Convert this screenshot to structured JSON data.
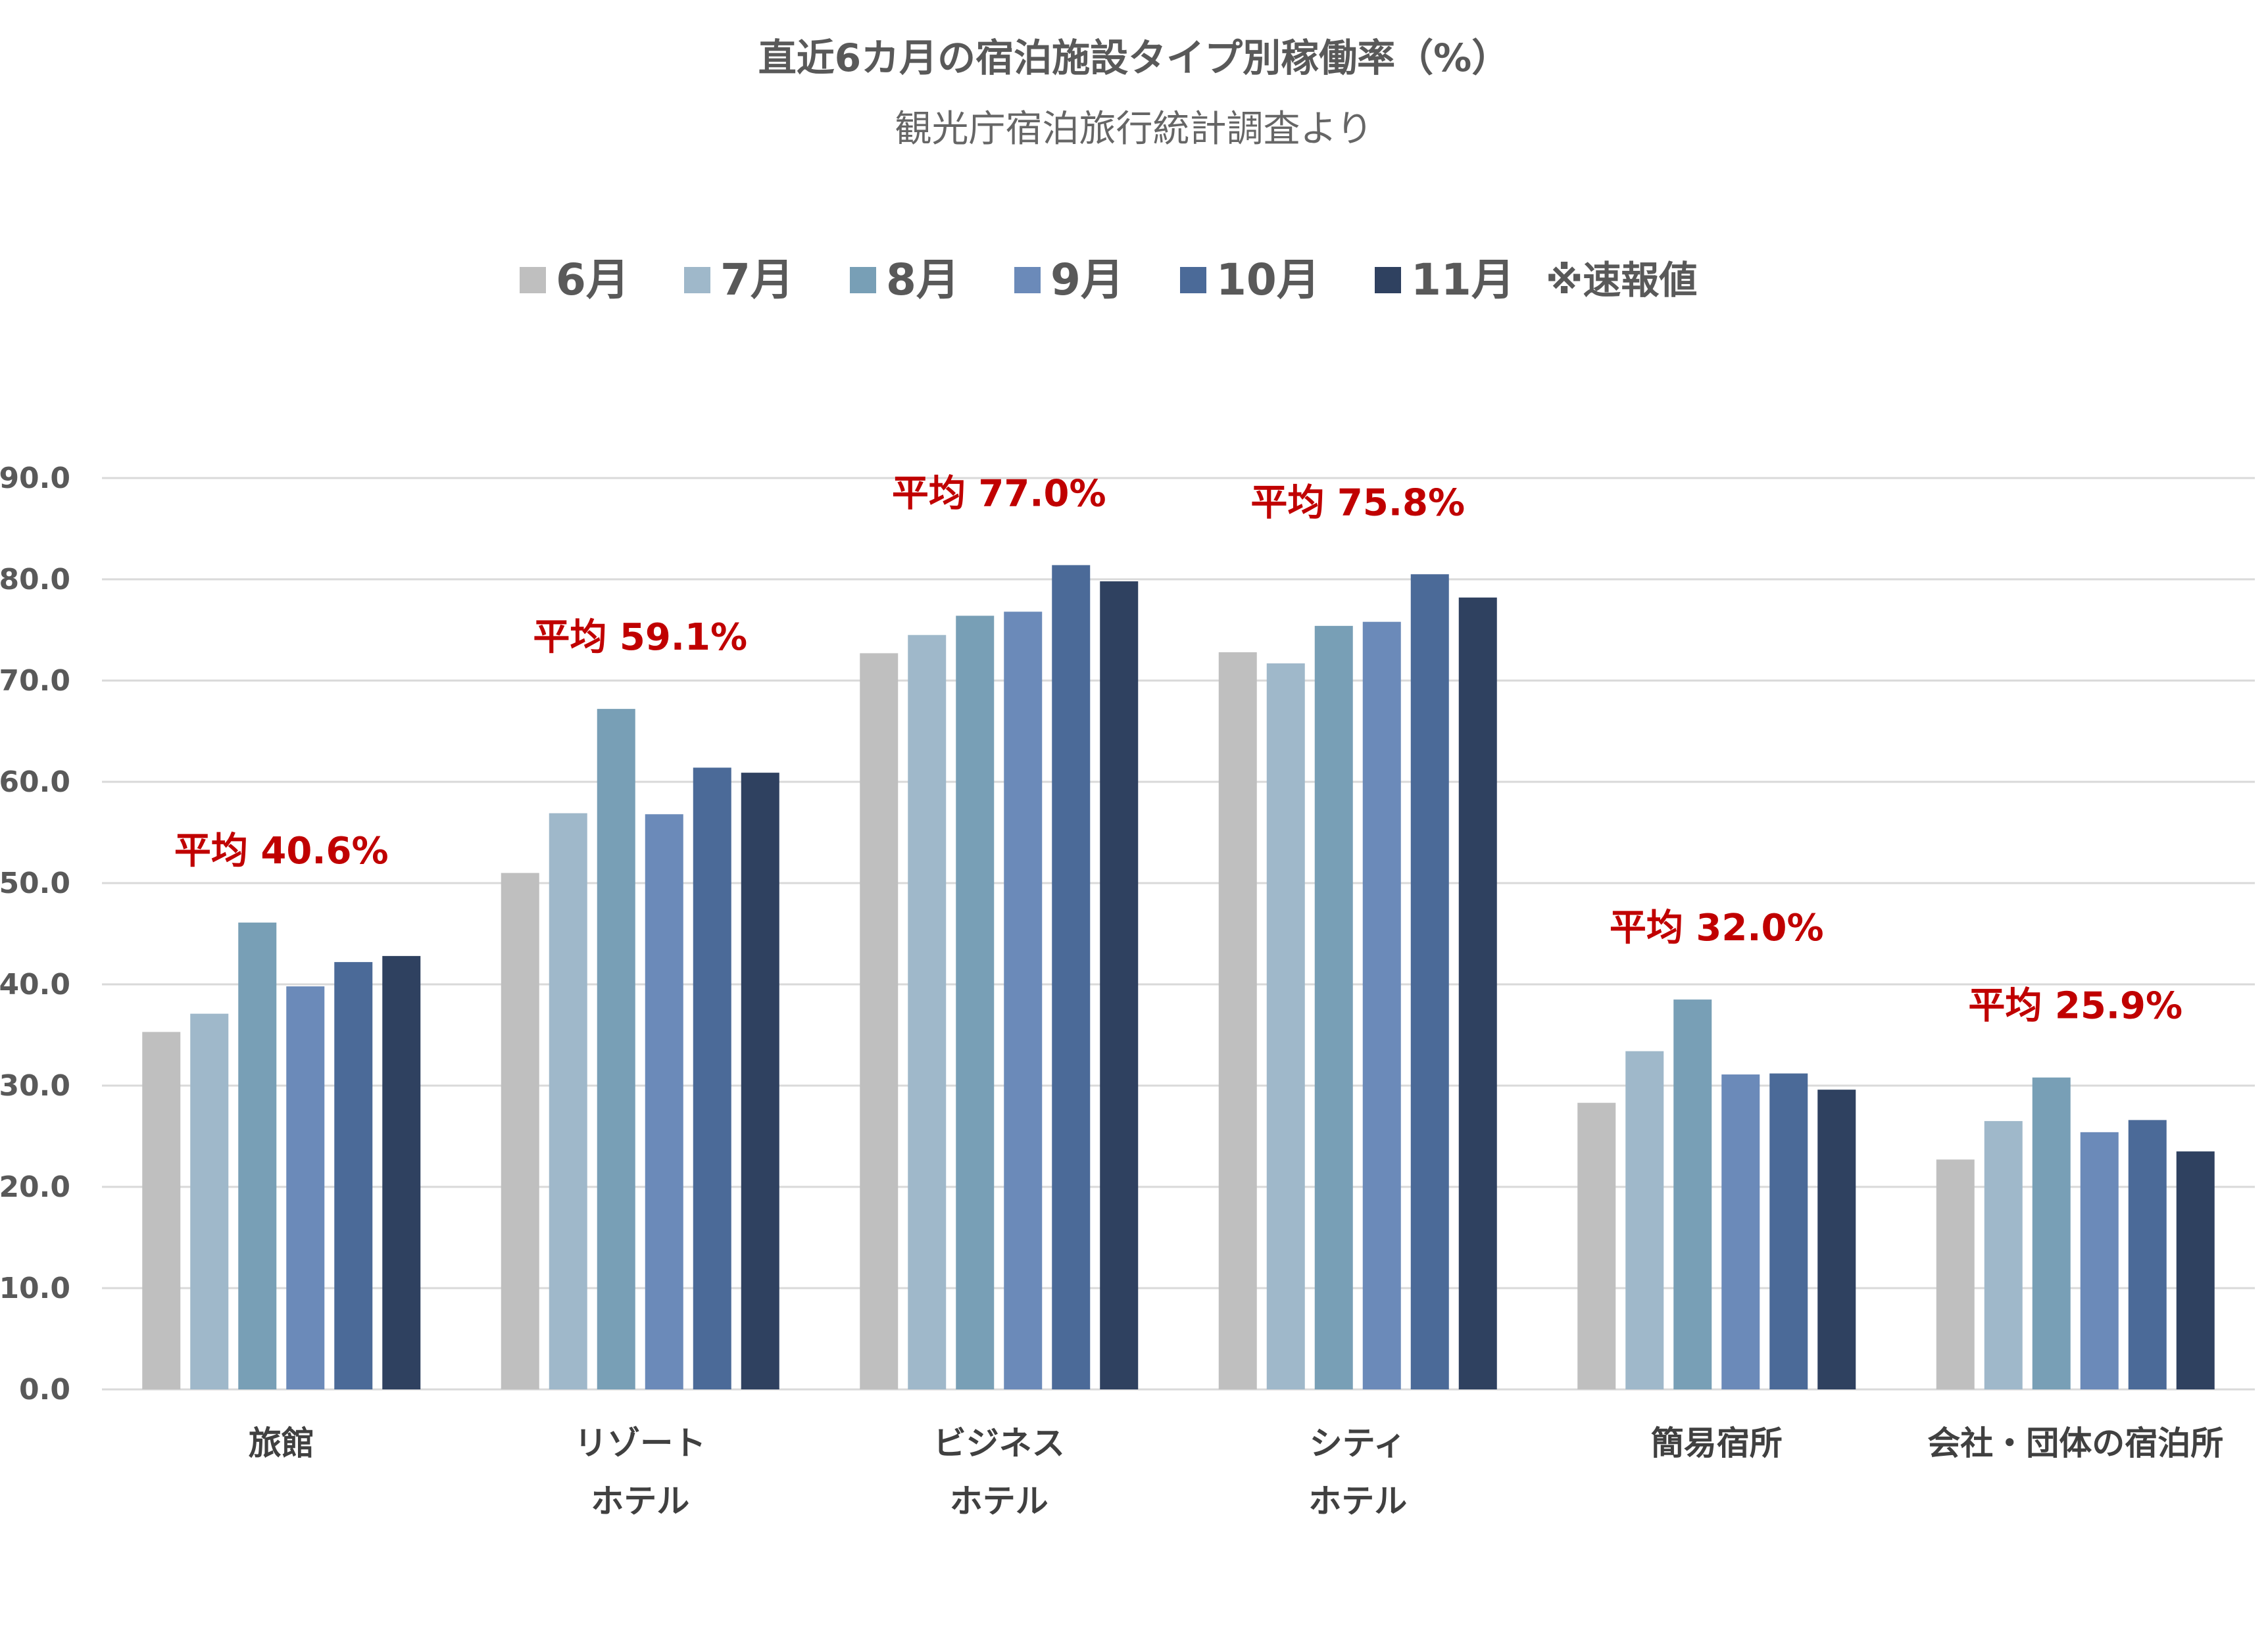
{
  "chart_data": {
    "type": "bar",
    "title": "直近6カ月の宿泊施設タイプ別稼働率（%）",
    "subtitle": "観光庁宿泊旅行統計調査より",
    "legend_note": "※速報値",
    "legend_position": "top",
    "grid": true,
    "ylim": [
      0,
      90
    ],
    "yticks": [
      "90.0",
      "80.0",
      "70.0",
      "60.0",
      "50.0",
      "40.0",
      "30.0",
      "20.0",
      "10.0",
      "0.0"
    ],
    "categories": [
      {
        "lines": [
          "旅館"
        ]
      },
      {
        "lines": [
          "リゾート",
          "ホテル"
        ]
      },
      {
        "lines": [
          "ビジネス",
          "ホテル"
        ]
      },
      {
        "lines": [
          "シティ",
          "ホテル"
        ]
      },
      {
        "lines": [
          "簡易宿所"
        ]
      },
      {
        "lines": [
          "会社・団体の宿泊所"
        ]
      }
    ],
    "series": [
      {
        "name": "6月",
        "color": "#BFBFBF",
        "values": [
          35.3,
          51.0,
          72.7,
          72.8,
          28.3,
          22.7
        ]
      },
      {
        "name": "7月",
        "color": "#9FB8CA",
        "values": [
          37.1,
          56.9,
          74.5,
          71.7,
          33.4,
          26.5
        ]
      },
      {
        "name": "8月",
        "color": "#789FB6",
        "values": [
          46.1,
          67.2,
          76.4,
          75.4,
          38.5,
          30.8
        ]
      },
      {
        "name": "9月",
        "color": "#6B8AB9",
        "values": [
          39.8,
          56.8,
          76.8,
          75.8,
          31.1,
          25.4
        ]
      },
      {
        "name": "10月",
        "color": "#4B6A98",
        "values": [
          42.2,
          61.4,
          81.4,
          80.5,
          31.2,
          26.6
        ]
      },
      {
        "name": "11月",
        "color": "#2F4160",
        "values": [
          42.8,
          60.9,
          79.8,
          78.2,
          29.6,
          23.5
        ]
      }
    ],
    "annotations": [
      {
        "category": 0,
        "text": "平均 40.6%"
      },
      {
        "category": 1,
        "text": "平均 59.1%"
      },
      {
        "category": 2,
        "text": "平均 77.0%"
      },
      {
        "category": 3,
        "text": "平均 75.8%"
      },
      {
        "category": 4,
        "text": "平均 32.0%"
      },
      {
        "category": 5,
        "text": "平均 25.9%"
      }
    ]
  }
}
